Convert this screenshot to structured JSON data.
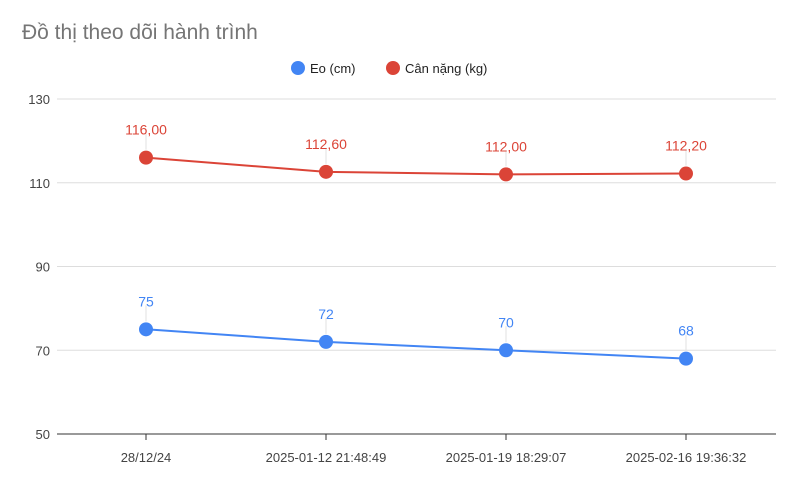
{
  "chart_data": {
    "type": "line",
    "title": "Đồ thị theo dõi hành trình",
    "categories": [
      "28/12/24",
      "2025-01-12 21:48:49",
      "2025-01-19 18:29:07",
      "2025-02-16 19:36:32"
    ],
    "series": [
      {
        "name": "Eo (cm)",
        "color": "#4285f4",
        "values": [
          75,
          72,
          70,
          68
        ],
        "labels": [
          "75",
          "72",
          "70",
          "68"
        ]
      },
      {
        "name": "Cân nặng (kg)",
        "color": "#db4437",
        "values": [
          116.0,
          112.6,
          112.0,
          112.2
        ],
        "labels": [
          "116,00",
          "112,60",
          "112,00",
          "112,20"
        ]
      }
    ],
    "yticks": [
      "50",
      "70",
      "90",
      "110",
      "130"
    ],
    "ylim": [
      50,
      130
    ],
    "grid": true,
    "legend_position": "top-center"
  }
}
